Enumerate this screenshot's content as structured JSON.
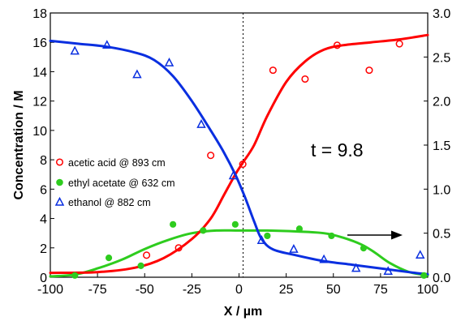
{
  "chart_data": {
    "type": "line",
    "ylabel": "Concentration / M",
    "xlabel": "X / µm",
    "xlim": [
      -100,
      100
    ],
    "ylim": [
      0,
      18
    ],
    "y2lim": [
      0,
      3.0
    ],
    "x_ticks": [
      "-100",
      "-75",
      "-50",
      "-25",
      "0",
      "25",
      "50",
      "75",
      "100"
    ],
    "y_ticks": [
      "0",
      "2",
      "4",
      "6",
      "8",
      "10",
      "12",
      "14",
      "16",
      "18"
    ],
    "y2_ticks": [
      "0.0",
      "0.5",
      "1.0",
      "1.5",
      "2.0",
      "2.5",
      "3.0"
    ],
    "annotation": "t = 9.8",
    "legend_position": "left",
    "grid": false,
    "series": [
      {
        "name": "acetic acid @ 893 cm",
        "axis": "left",
        "color": "#ff0000",
        "marker": "open-circle",
        "points": [
          [
            -49,
            1.5
          ],
          [
            -32,
            2.0
          ],
          [
            -15,
            8.3
          ],
          [
            2,
            7.7
          ],
          [
            18,
            14.1
          ],
          [
            35,
            13.5
          ],
          [
            52,
            15.8
          ],
          [
            69,
            14.1
          ],
          [
            85,
            15.9
          ]
        ],
        "fit": [
          [
            -100,
            0.3
          ],
          [
            -75,
            0.35
          ],
          [
            -55,
            0.65
          ],
          [
            -40,
            1.3
          ],
          [
            -25,
            2.6
          ],
          [
            -15,
            4.0
          ],
          [
            -8,
            5.6
          ],
          [
            -2,
            7.0
          ],
          [
            2,
            7.8
          ],
          [
            8,
            9.0
          ],
          [
            15,
            11.0
          ],
          [
            25,
            13.3
          ],
          [
            35,
            14.7
          ],
          [
            45,
            15.5
          ],
          [
            55,
            15.8
          ],
          [
            70,
            16.0
          ],
          [
            85,
            16.2
          ],
          [
            100,
            16.5
          ]
        ]
      },
      {
        "name": "ethyl acetate @ 632 cm",
        "axis": "right",
        "color": "#2ecc1e",
        "marker": "filled-circle",
        "points": [
          [
            -87,
            0.02
          ],
          [
            -69,
            0.22
          ],
          [
            -52,
            0.13
          ],
          [
            -35,
            0.6
          ],
          [
            -19,
            0.53
          ],
          [
            -2,
            0.6
          ],
          [
            15,
            0.47
          ],
          [
            32,
            0.55
          ],
          [
            49,
            0.47
          ],
          [
            66,
            0.33
          ],
          [
            98,
            0.02
          ]
        ],
        "fit": [
          [
            -100,
            0.01
          ],
          [
            -87,
            0.03
          ],
          [
            -75,
            0.1
          ],
          [
            -62,
            0.2
          ],
          [
            -50,
            0.32
          ],
          [
            -38,
            0.42
          ],
          [
            -25,
            0.5
          ],
          [
            -12,
            0.53
          ],
          [
            0,
            0.53
          ],
          [
            15,
            0.53
          ],
          [
            30,
            0.52
          ],
          [
            45,
            0.5
          ],
          [
            55,
            0.45
          ],
          [
            65,
            0.37
          ],
          [
            72,
            0.28
          ],
          [
            80,
            0.16
          ],
          [
            90,
            0.06
          ],
          [
            100,
            0.02
          ]
        ]
      },
      {
        "name": "ethanol @ 882 cm",
        "axis": "left",
        "color": "#0a2fe0",
        "marker": "open-triangle",
        "points": [
          [
            -87,
            15.4
          ],
          [
            -70,
            15.8
          ],
          [
            -54,
            13.8
          ],
          [
            -37,
            14.6
          ],
          [
            -20,
            10.4
          ],
          [
            -3,
            6.9
          ],
          [
            12,
            2.5
          ],
          [
            29,
            1.9
          ],
          [
            45,
            1.2
          ],
          [
            62,
            0.6
          ],
          [
            79,
            0.4
          ],
          [
            96,
            1.5
          ]
        ],
        "fit": [
          [
            -100,
            16.1
          ],
          [
            -85,
            15.9
          ],
          [
            -70,
            15.7
          ],
          [
            -55,
            15.3
          ],
          [
            -45,
            14.8
          ],
          [
            -35,
            13.7
          ],
          [
            -25,
            12.0
          ],
          [
            -15,
            10.0
          ],
          [
            -8,
            8.5
          ],
          [
            -2,
            7.0
          ],
          [
            3,
            5.5
          ],
          [
            8,
            3.8
          ],
          [
            12,
            2.6
          ],
          [
            18,
            1.9
          ],
          [
            30,
            1.5
          ],
          [
            45,
            1.1
          ],
          [
            60,
            0.85
          ],
          [
            75,
            0.6
          ],
          [
            90,
            0.35
          ],
          [
            100,
            0.2
          ]
        ]
      }
    ]
  }
}
